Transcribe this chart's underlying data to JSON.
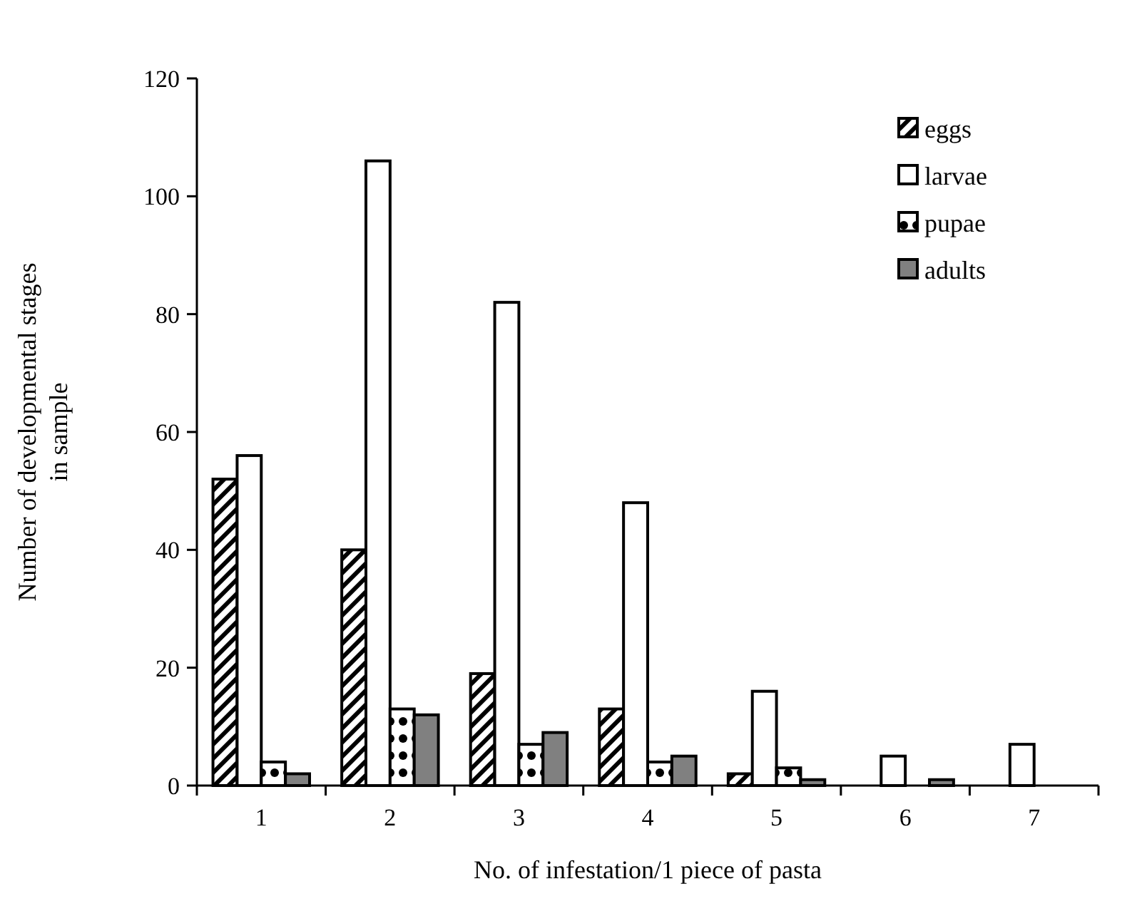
{
  "chart_data": {
    "type": "bar",
    "xlabel": "No. of infestation/1 piece of pasta",
    "ylabel": "Number of developmental stages\nin sample",
    "categories": [
      "1",
      "2",
      "3",
      "4",
      "5",
      "6",
      "7"
    ],
    "series": [
      {
        "name": "eggs",
        "color": "#000000",
        "values": [
          52,
          40,
          19,
          13,
          2,
          0,
          0
        ]
      },
      {
        "name": "larvae",
        "color": "#ffffff",
        "values": [
          56,
          106,
          82,
          48,
          16,
          5,
          7
        ]
      },
      {
        "name": "pupae",
        "color": "#000000",
        "values": [
          4,
          13,
          7,
          4,
          3,
          0,
          0
        ]
      },
      {
        "name": "adults",
        "color": "#808080",
        "values": [
          2,
          12,
          9,
          5,
          1,
          1,
          0
        ]
      }
    ],
    "ylim": [
      0,
      120
    ],
    "yticks": [
      0,
      20,
      40,
      60,
      80,
      100,
      120
    ],
    "grid": false,
    "legend": "top right"
  }
}
